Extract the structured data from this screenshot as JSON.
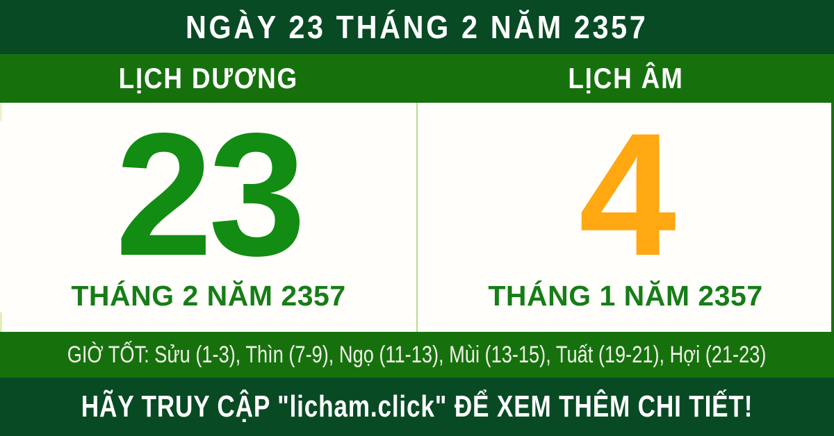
{
  "top_bar": {
    "title": "NGÀY 23 THÁNG 2 NĂM 2357"
  },
  "calendar_header": {
    "solar_label": "LỊCH DƯƠNG",
    "lunar_label": "LỊCH ÂM"
  },
  "solar_panel": {
    "day": "23",
    "month_year": "THÁNG 2 NĂM 2357"
  },
  "lunar_panel": {
    "day": "4",
    "month_year": "THÁNG 1 NĂM 2357"
  },
  "good_hours_bar": {
    "label": "GIỜ TỐT:",
    "hours": "Sửu (1-3), Thìn (7-9), Ngọ (11-13), Mùi (13-15), Tuất (19-21), Hợi (21-23)"
  },
  "footer_bar": {
    "message": "HÃY TRUY CẬP \"licham.click\" ĐỂ XEM THÊM CHI TIẾT!"
  },
  "colors": {
    "dark_green": "#084a24",
    "medium_green": "#16710d",
    "solar_day_green": "#128c12",
    "lunar_day_orange": "#ffa812",
    "month_label_green": "#177d17",
    "divider_light_green": "#b9dd8c",
    "content_background": "#fffefa",
    "good_hours_text": "#f2f1ea"
  }
}
